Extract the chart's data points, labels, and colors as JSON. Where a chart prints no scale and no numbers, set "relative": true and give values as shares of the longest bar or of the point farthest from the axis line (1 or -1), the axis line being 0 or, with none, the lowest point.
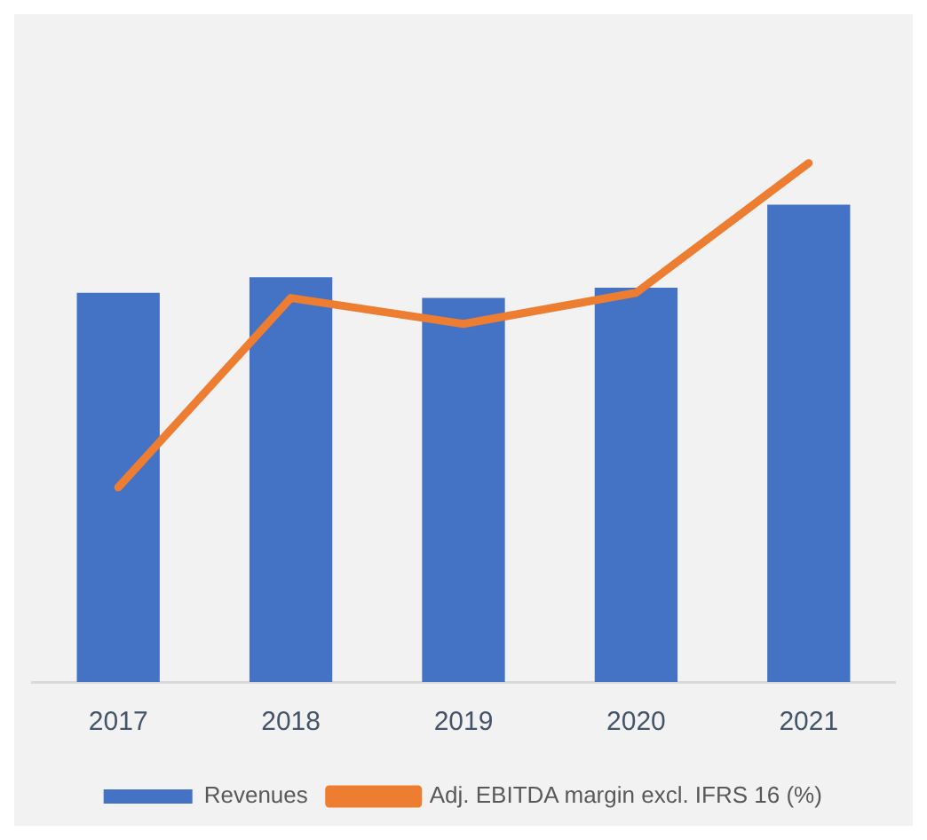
{
  "chart_data": {
    "type": "bar",
    "relative": true,
    "categories": [
      "2017",
      "2018",
      "2019",
      "2020",
      "2021"
    ],
    "series": [
      {
        "name": "Revenues",
        "color": "#4472c4",
        "values": [
          0.75,
          0.78,
          0.74,
          0.76,
          0.92
        ]
      },
      {
        "name": "Adj. EBITDA margin excl. IFRS 16 (%)",
        "type": "line",
        "color": "#ed7d31",
        "values": [
          0.375,
          0.74,
          0.69,
          0.75,
          1
        ]
      }
    ],
    "legend": "bottom",
    "grid": false,
    "marker": "none"
  }
}
